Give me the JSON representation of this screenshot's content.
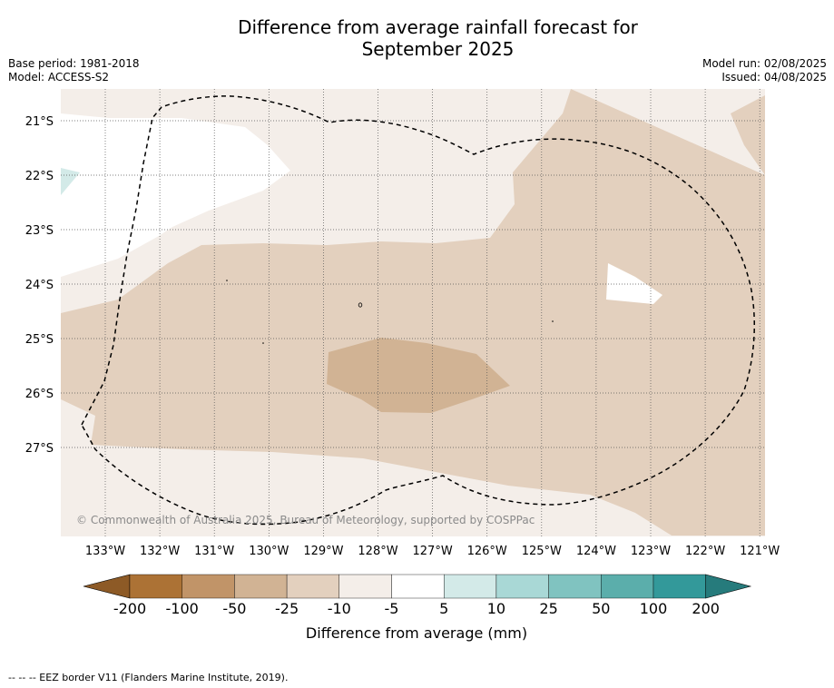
{
  "title": {
    "line1": "Difference from average rainfall forecast for",
    "line2": "September 2025"
  },
  "meta": {
    "base_period": "Base period: 1981-2018",
    "model": "Model: ACCESS-S2",
    "model_run": "Model run: 02/08/2025",
    "issued": "Issued: 04/08/2025"
  },
  "map": {
    "lon_range": [
      -133.8,
      -120.9
    ],
    "lat_range": [
      -28.6,
      -20.4
    ],
    "lon_ticks": [
      "133°W",
      "132°W",
      "131°W",
      "130°W",
      "129°W",
      "128°W",
      "127°W",
      "126°W",
      "125°W",
      "124°W",
      "123°W",
      "122°W",
      "121°W"
    ],
    "lat_ticks": [
      "21°S",
      "22°S",
      "23°S",
      "24°S",
      "25°S",
      "26°S",
      "27°S"
    ],
    "copyright": "© Commonwealth of Australia 2025, Bureau of Meteorology, supported by COSPPac",
    "colors": {
      "band_5_10": "#d3eae8",
      "band_m5_5": "#ffffff",
      "band_m10_m5": "#f4eee9",
      "band_m25_m10": "#e3d0be",
      "band_m50_m25": "#d1b394"
    }
  },
  "colorbar": {
    "label": "Difference from average (mm)",
    "ticks": [
      "-200",
      "-100",
      "-50",
      "-25",
      "-10",
      "-5",
      "5",
      "10",
      "25",
      "50",
      "100",
      "200"
    ],
    "colors": [
      "#ac7235",
      "#c19468",
      "#d1b394",
      "#e3d0be",
      "#f4eee9",
      "#ffffff",
      "#d3eae8",
      "#a9d8d6",
      "#80c3c0",
      "#5baeab",
      "#33999a"
    ],
    "extend_low_color": "#8d5a26",
    "extend_high_color": "#267b7c"
  },
  "footer": "--  --  -- EEZ border V11 (Flanders Marine Institute, 2019)."
}
